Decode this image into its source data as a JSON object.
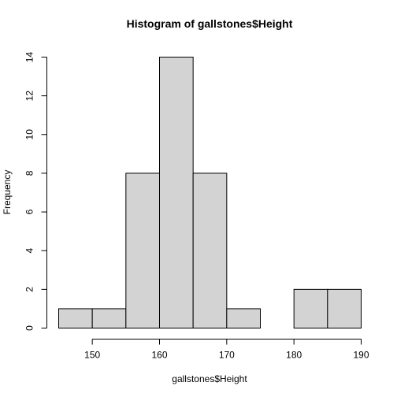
{
  "chart_data": {
    "type": "bar",
    "title": "Histogram of gallstones$Height",
    "xlabel": "gallstones$Height",
    "ylabel": "Frequency",
    "bins": [
      {
        "start": 145,
        "end": 150,
        "count": 1
      },
      {
        "start": 150,
        "end": 155,
        "count": 1
      },
      {
        "start": 155,
        "end": 160,
        "count": 8
      },
      {
        "start": 160,
        "end": 165,
        "count": 14
      },
      {
        "start": 165,
        "end": 170,
        "count": 8
      },
      {
        "start": 170,
        "end": 175,
        "count": 1
      },
      {
        "start": 175,
        "end": 180,
        "count": 0
      },
      {
        "start": 180,
        "end": 185,
        "count": 2
      },
      {
        "start": 185,
        "end": 190,
        "count": 2
      }
    ],
    "xlim": [
      145,
      190
    ],
    "ylim": [
      0,
      14
    ],
    "xticks": [
      150,
      160,
      170,
      180,
      190
    ],
    "yticks": [
      0,
      2,
      4,
      6,
      8,
      10,
      12,
      14
    ],
    "bar_fill": "#d3d3d3",
    "bar_stroke": "#000000"
  }
}
